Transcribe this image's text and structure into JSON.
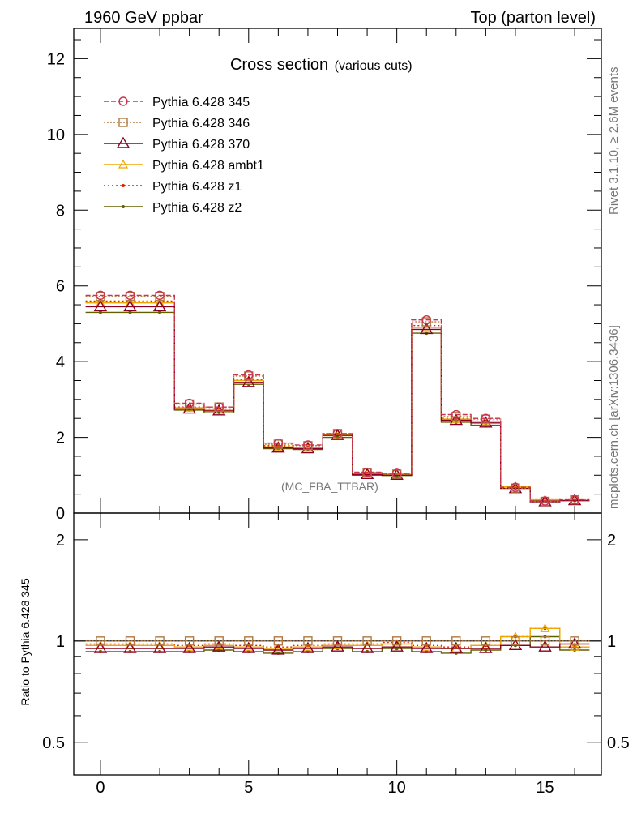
{
  "header": {
    "left_title": "1960 GeV ppbar",
    "right_title": "Top (parton level)"
  },
  "side_labels": {
    "rivet": "Rivet 3.1.10, ≥ 2.6M events",
    "mcplots": "mcplots.cern.ch [arXiv:1306.3436]"
  },
  "analysis_tag": "(MC_FBA_TTBAR)",
  "chart_data": [
    {
      "type": "line",
      "title": "Cross section",
      "subtitle": "(various cuts)",
      "xlim": [
        -0.9,
        16.9
      ],
      "ylim": [
        0,
        12.8
      ],
      "yticks": [
        0,
        2,
        4,
        6,
        8,
        10,
        12
      ],
      "grid": false,
      "legend_position": "top-left",
      "x": [
        0,
        1,
        2,
        3,
        4,
        5,
        6,
        7,
        8,
        9,
        10,
        11,
        12,
        13,
        14,
        15,
        16
      ],
      "series": [
        {
          "name": "Pythia 6.428 345",
          "color": "#cc3350",
          "marker": "circle",
          "dash": "6,3",
          "values": [
            5.75,
            5.75,
            5.75,
            2.9,
            2.8,
            3.65,
            1.85,
            1.8,
            2.1,
            1.08,
            1.05,
            5.1,
            2.6,
            2.5,
            0.68,
            0.32,
            0.35
          ]
        },
        {
          "name": "Pythia 6.428 346",
          "color": "#b07840",
          "marker": "square",
          "dash": "2,2",
          "values": [
            5.72,
            5.72,
            5.72,
            2.88,
            2.8,
            3.62,
            1.82,
            1.78,
            2.1,
            1.07,
            1.03,
            5.05,
            2.55,
            2.48,
            0.66,
            0.31,
            0.35
          ]
        },
        {
          "name": "Pythia 6.428 370",
          "color": "#8b0020",
          "marker": "triangle",
          "dash": "",
          "values": [
            5.45,
            5.45,
            5.45,
            2.75,
            2.7,
            3.45,
            1.72,
            1.7,
            2.05,
            1.02,
            1.0,
            4.85,
            2.45,
            2.38,
            0.65,
            0.3,
            0.33
          ]
        },
        {
          "name": "Pythia 6.428 ambt1",
          "color": "#f0a500",
          "marker": "triangle-small",
          "dash": "",
          "values": [
            5.55,
            5.55,
            5.55,
            2.78,
            2.72,
            3.5,
            1.75,
            1.72,
            2.07,
            1.04,
            1.02,
            4.9,
            2.48,
            2.42,
            0.7,
            0.35,
            0.33
          ]
        },
        {
          "name": "Pythia 6.428 z1",
          "color": "#dd2200",
          "marker": "dot",
          "dash": "2,3",
          "values": [
            5.6,
            5.6,
            5.6,
            2.8,
            2.75,
            3.52,
            1.78,
            1.74,
            2.08,
            1.05,
            1.03,
            4.95,
            2.5,
            2.43,
            0.7,
            0.35,
            0.33
          ]
        },
        {
          "name": "Pythia 6.428 z2",
          "color": "#606000",
          "marker": "dot",
          "dash": "",
          "values": [
            5.3,
            5.3,
            5.3,
            2.72,
            2.65,
            3.4,
            1.7,
            1.68,
            2.0,
            1.0,
            0.99,
            4.75,
            2.4,
            2.32,
            0.66,
            0.33,
            0.33
          ]
        }
      ]
    },
    {
      "type": "line",
      "ylabel": "Ratio to Pythia 6.428 345",
      "xlim": [
        -0.9,
        16.9
      ],
      "ylim": [
        0.4,
        2.4
      ],
      "ylog": true,
      "yticks": [
        0.5,
        1,
        2
      ],
      "xticks": [
        0,
        5,
        10,
        15
      ],
      "reference_line": 1,
      "x": [
        0,
        1,
        2,
        3,
        4,
        5,
        6,
        7,
        8,
        9,
        10,
        11,
        12,
        13,
        14,
        15,
        16
      ],
      "series": [
        {
          "name": "Pythia 6.428 346",
          "values": [
            1.0,
            1.0,
            1.0,
            1.0,
            1.0,
            1.0,
            1.0,
            1.0,
            1.0,
            1.0,
            1.0,
            1.0,
            1.0,
            1.0,
            1.0,
            1.0,
            1.0
          ]
        },
        {
          "name": "Pythia 6.428 370",
          "values": [
            0.95,
            0.95,
            0.95,
            0.95,
            0.96,
            0.95,
            0.94,
            0.95,
            0.96,
            0.95,
            0.96,
            0.95,
            0.95,
            0.95,
            0.97,
            0.96,
            0.98
          ]
        },
        {
          "name": "Pythia 6.428 ambt1",
          "values": [
            0.97,
            0.97,
            0.97,
            0.96,
            0.97,
            0.96,
            0.95,
            0.96,
            0.97,
            0.97,
            0.98,
            0.96,
            0.95,
            0.97,
            1.03,
            1.09,
            0.96
          ]
        },
        {
          "name": "Pythia 6.428 z1",
          "values": [
            0.98,
            0.98,
            0.98,
            0.97,
            0.98,
            0.97,
            0.96,
            0.97,
            0.98,
            0.98,
            0.99,
            0.97,
            0.96,
            0.97,
            1.03,
            1.09,
            0.96
          ]
        },
        {
          "name": "Pythia 6.428 z2",
          "values": [
            0.93,
            0.93,
            0.93,
            0.93,
            0.94,
            0.93,
            0.92,
            0.93,
            0.95,
            0.93,
            0.95,
            0.93,
            0.92,
            0.94,
            0.97,
            1.03,
            0.94
          ]
        }
      ]
    }
  ]
}
